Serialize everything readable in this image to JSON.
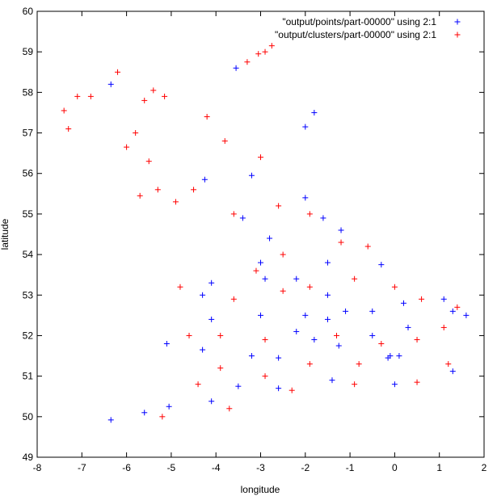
{
  "chart_data": {
    "type": "scatter",
    "title": "",
    "xlabel": "longitude",
    "ylabel": "latitude",
    "xlim": [
      -8,
      2
    ],
    "ylim": [
      49,
      60
    ],
    "x_ticks": [
      -8,
      -7,
      -6,
      -5,
      -4,
      -3,
      -2,
      -1,
      0,
      1,
      2
    ],
    "y_ticks": [
      49,
      50,
      51,
      52,
      53,
      54,
      55,
      56,
      57,
      58,
      59,
      60
    ],
    "grid": false,
    "legend_position": "top-right",
    "marker": "+",
    "series": [
      {
        "name": "\"output/points/part-00000\" using 2:1",
        "color": "#0000ff",
        "points": [
          [
            -6.35,
            58.2
          ],
          [
            -6.35,
            49.92
          ],
          [
            -3.55,
            58.6
          ],
          [
            -2.0,
            57.15
          ],
          [
            -1.8,
            57.5
          ],
          [
            -4.25,
            55.85
          ],
          [
            -3.2,
            55.95
          ],
          [
            -5.6,
            50.1
          ],
          [
            -5.05,
            50.25
          ],
          [
            -4.1,
            50.38
          ],
          [
            -3.5,
            50.75
          ],
          [
            -2.6,
            50.7
          ],
          [
            -1.4,
            50.9
          ],
          [
            0.0,
            50.8
          ],
          [
            1.3,
            51.12
          ],
          [
            0.1,
            51.5
          ],
          [
            -0.15,
            51.45
          ],
          [
            -1.25,
            51.75
          ],
          [
            -2.6,
            51.45
          ],
          [
            -3.2,
            51.5
          ],
          [
            -4.3,
            51.65
          ],
          [
            -5.1,
            51.8
          ],
          [
            -4.1,
            52.4
          ],
          [
            -3.0,
            52.5
          ],
          [
            -2.0,
            52.5
          ],
          [
            -1.5,
            52.4
          ],
          [
            -1.1,
            52.6
          ],
          [
            -0.5,
            52.6
          ],
          [
            0.3,
            52.2
          ],
          [
            1.3,
            52.6
          ],
          [
            1.6,
            52.5
          ],
          [
            1.1,
            52.9
          ],
          [
            0.2,
            52.8
          ],
          [
            -1.5,
            53.0
          ],
          [
            -2.2,
            53.4
          ],
          [
            -1.5,
            53.8
          ],
          [
            -0.3,
            53.75
          ],
          [
            -2.9,
            53.4
          ],
          [
            -3.0,
            53.8
          ],
          [
            -2.8,
            54.4
          ],
          [
            -1.6,
            54.9
          ],
          [
            -1.2,
            54.6
          ],
          [
            -2.0,
            55.4
          ],
          [
            -3.4,
            54.9
          ],
          [
            -4.1,
            53.3
          ],
          [
            -4.3,
            53.0
          ],
          [
            -0.1,
            51.5
          ],
          [
            -0.5,
            52.0
          ],
          [
            -1.8,
            51.9
          ],
          [
            -2.2,
            52.1
          ]
        ]
      },
      {
        "name": "\"output/clusters/part-00000\" using 2:1",
        "color": "#ff0000",
        "points": [
          [
            -7.4,
            57.55
          ],
          [
            -7.3,
            57.1
          ],
          [
            -7.1,
            57.9
          ],
          [
            -6.8,
            57.9
          ],
          [
            -6.2,
            58.5
          ],
          [
            -6.0,
            56.65
          ],
          [
            -5.8,
            57.0
          ],
          [
            -5.6,
            57.8
          ],
          [
            -5.4,
            58.05
          ],
          [
            -5.15,
            57.9
          ],
          [
            -5.7,
            55.45
          ],
          [
            -5.5,
            56.3
          ],
          [
            -5.3,
            55.6
          ],
          [
            -2.9,
            59.0
          ],
          [
            -2.75,
            59.15
          ],
          [
            -3.05,
            58.95
          ],
          [
            -3.3,
            58.75
          ],
          [
            -4.2,
            57.4
          ],
          [
            -3.8,
            56.8
          ],
          [
            -3.0,
            56.4
          ],
          [
            -4.5,
            55.6
          ],
          [
            -4.9,
            55.3
          ],
          [
            -3.6,
            55.0
          ],
          [
            -2.6,
            55.2
          ],
          [
            -1.9,
            55.0
          ],
          [
            -1.2,
            54.3
          ],
          [
            -0.6,
            54.2
          ],
          [
            -2.5,
            54.0
          ],
          [
            -3.1,
            53.6
          ],
          [
            -2.5,
            53.1
          ],
          [
            -1.9,
            53.2
          ],
          [
            -0.9,
            53.4
          ],
          [
            0.0,
            53.2
          ],
          [
            0.6,
            52.9
          ],
          [
            1.4,
            52.7
          ],
          [
            1.1,
            52.2
          ],
          [
            0.5,
            51.9
          ],
          [
            -0.3,
            51.8
          ],
          [
            -0.8,
            51.3
          ],
          [
            -1.9,
            51.3
          ],
          [
            -2.9,
            51.0
          ],
          [
            -3.9,
            51.2
          ],
          [
            -4.4,
            50.8
          ],
          [
            -5.2,
            50.0
          ],
          [
            -3.7,
            50.2
          ],
          [
            -2.3,
            50.65
          ],
          [
            -0.9,
            50.8
          ],
          [
            0.5,
            50.85
          ],
          [
            1.2,
            51.3
          ],
          [
            -4.6,
            52.0
          ],
          [
            -4.8,
            53.2
          ],
          [
            -3.6,
            52.9
          ],
          [
            -3.9,
            52.0
          ],
          [
            -2.9,
            51.9
          ],
          [
            -1.3,
            52.0
          ]
        ]
      }
    ]
  }
}
